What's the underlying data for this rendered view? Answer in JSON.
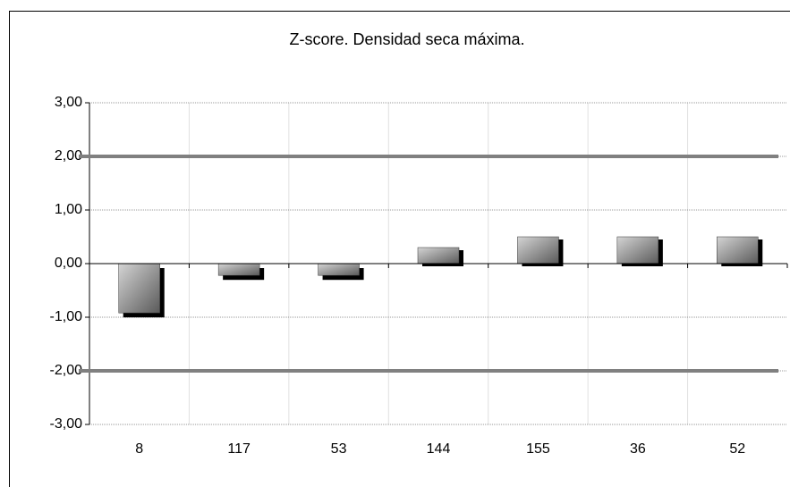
{
  "chart_data": {
    "type": "bar",
    "title": "Z-score. Densidad seca máxima.",
    "categories": [
      "8",
      "117",
      "53",
      "144",
      "155",
      "36",
      "52"
    ],
    "values": [
      -0.92,
      -0.22,
      -0.22,
      0.3,
      0.5,
      0.5,
      0.5
    ],
    "ylim": [
      -3,
      3
    ],
    "yticks": [
      {
        "value": -3,
        "label": "-3,00"
      },
      {
        "value": -2,
        "label": "-2,00"
      },
      {
        "value": -1,
        "label": "-1,00"
      },
      {
        "value": 0,
        "label": "0,00"
      },
      {
        "value": 1,
        "label": "1,00"
      },
      {
        "value": 2,
        "label": "2,00"
      },
      {
        "value": 3,
        "label": "3,00"
      }
    ],
    "reference_lines": [
      2,
      -2
    ],
    "grid": true,
    "color": "#7a7a7a"
  }
}
